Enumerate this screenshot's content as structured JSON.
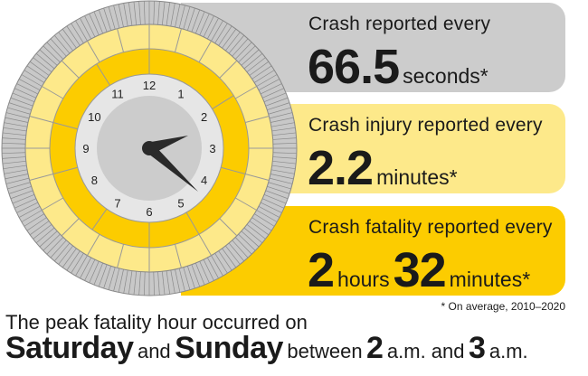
{
  "stats": [
    {
      "label": "Crash reported every",
      "value": "66.5",
      "unit": "seconds*",
      "color": "#cccccc"
    },
    {
      "label": "Crash injury reported every",
      "value": "2.2",
      "unit": "minutes*",
      "color": "#fde98a"
    },
    {
      "label": "Crash fatality reported every",
      "value1": "2",
      "unit1": "hours",
      "value2": "32",
      "unit2": "minutes*",
      "color": "#fccc00"
    }
  ],
  "footnote": "* On average, 2010–2020",
  "peak": {
    "line1": "The peak fatality hour occurred on",
    "day1": "Saturday",
    "and": "and",
    "day2": "Sunday",
    "between": "between",
    "hour1": "2",
    "am1": "a.m. and",
    "hour2": "3",
    "am2": "a.m."
  },
  "clock": {
    "numbers": [
      "12",
      "1",
      "2",
      "3",
      "4",
      "5",
      "6",
      "7",
      "8",
      "9",
      "10",
      "11"
    ],
    "time_shown": "2:23"
  }
}
